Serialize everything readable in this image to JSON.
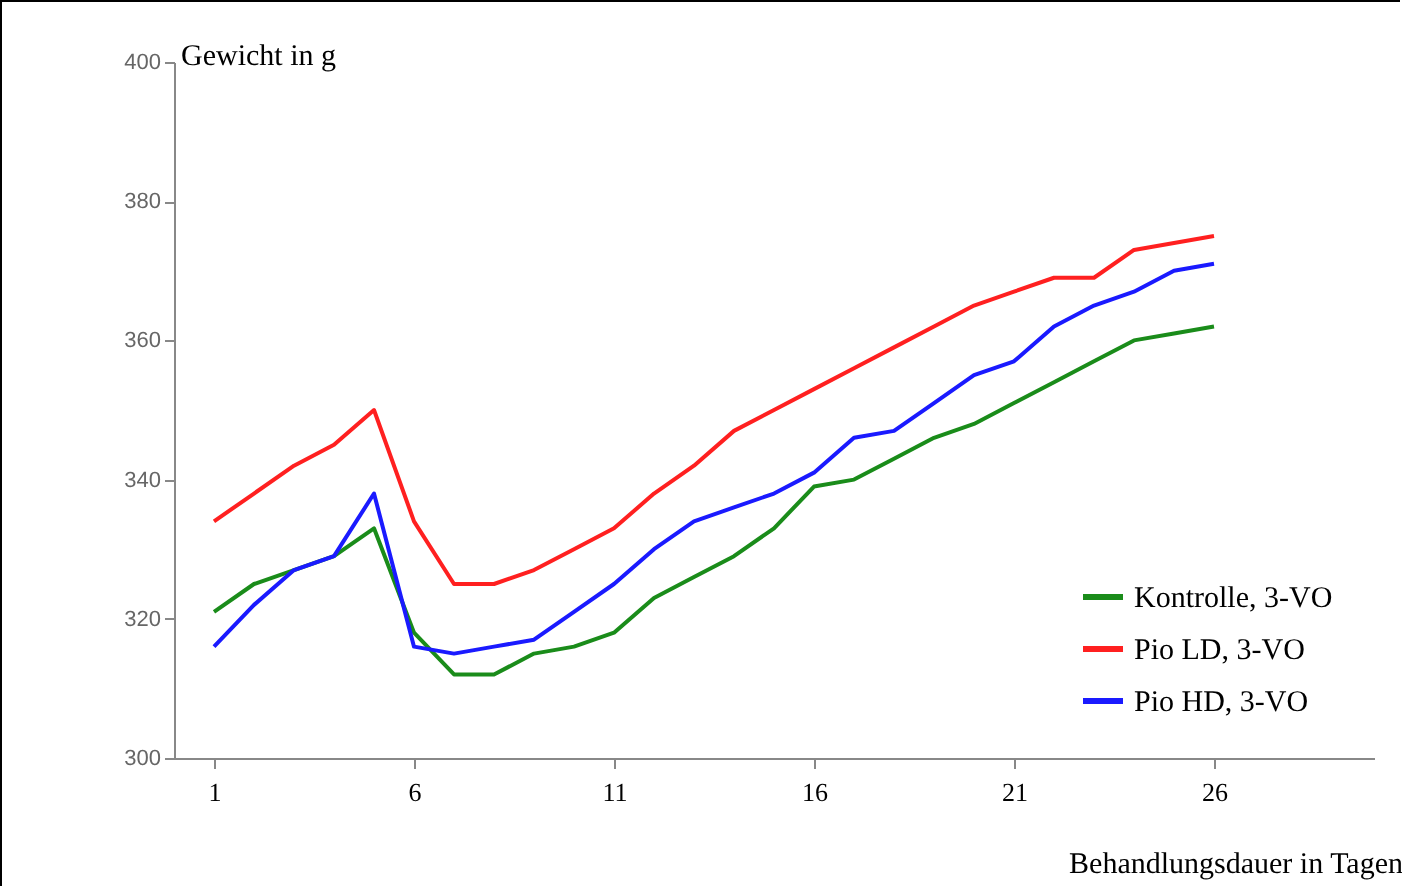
{
  "chart_data": {
    "type": "line",
    "xlabel": "Behandlungsdauer in Tagen",
    "ylabel": "Gewicht in g",
    "x": [
      1,
      2,
      3,
      4,
      5,
      6,
      7,
      8,
      9,
      10,
      11,
      12,
      13,
      14,
      15,
      16,
      17,
      18,
      19,
      20,
      21,
      22,
      23,
      24,
      25,
      26
    ],
    "series": [
      {
        "name": "Kontrolle, 3-VO",
        "color": "#1a8c1a",
        "values": [
          321,
          325,
          327,
          329,
          333,
          318,
          312,
          312,
          315,
          316,
          318,
          323,
          326,
          329,
          333,
          339,
          340,
          343,
          346,
          348,
          351,
          354,
          357,
          360,
          361,
          362
        ]
      },
      {
        "name": "Pio LD, 3-VO",
        "color": "#ff2020",
        "values": [
          334,
          338,
          342,
          345,
          350,
          334,
          325,
          325,
          327,
          330,
          333,
          338,
          342,
          347,
          350,
          353,
          356,
          359,
          362,
          365,
          367,
          369,
          369,
          373,
          374,
          375
        ]
      },
      {
        "name": "Pio HD, 3-VO",
        "color": "#1a1aff",
        "values": [
          316,
          322,
          327,
          329,
          338,
          316,
          315,
          316,
          317,
          321,
          325,
          330,
          334,
          336,
          338,
          341,
          346,
          347,
          351,
          355,
          357,
          362,
          365,
          367,
          370,
          371
        ]
      }
    ],
    "xlim": [
      0,
      30
    ],
    "xticks": [
      1,
      6,
      11,
      16,
      21,
      26
    ],
    "ylim": [
      300,
      400
    ],
    "yticks": [
      300,
      320,
      340,
      360,
      380,
      400
    ],
    "grid": false,
    "legend": "bottom right"
  }
}
